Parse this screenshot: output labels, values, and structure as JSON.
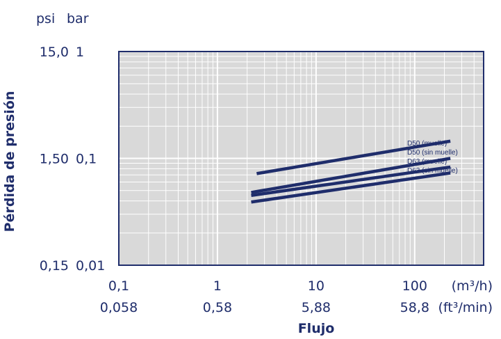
{
  "colors": {
    "background": "#ffffff",
    "plot_background": "#d9d9d9",
    "grid": "#ffffff",
    "frame": "#1f2d6b",
    "line": "#1f2d6b",
    "text": "#1f2d6b"
  },
  "chart_data": {
    "type": "line",
    "title": "",
    "xlabel": "Flujo",
    "ylabel": "Pérdida de presión",
    "x_scale": "log",
    "y_scale": "log",
    "xlim": [
      0.1,
      500
    ],
    "ylim": [
      0.01,
      1
    ],
    "grid": true,
    "legend": "inline labels at line ends",
    "x_units": [
      "(m³/h)",
      "(ft³/min)"
    ],
    "y_units": [
      "psi",
      "bar"
    ],
    "x_ticks": [
      {
        "value": 0.1,
        "label": "0,1",
        "alt_label": "0,058"
      },
      {
        "value": 1,
        "label": "1",
        "alt_label": "0,58"
      },
      {
        "value": 10,
        "label": "10",
        "alt_label": "5,88"
      },
      {
        "value": 100,
        "label": "100",
        "alt_label": "58,8"
      }
    ],
    "y_ticks": [
      {
        "value": 1,
        "label": "1",
        "alt_label": "15,0"
      },
      {
        "value": 0.1,
        "label": "0,1",
        "alt_label": "1,50"
      },
      {
        "value": 0.01,
        "label": "0,01",
        "alt_label": "0,15"
      }
    ],
    "series": [
      {
        "name": "D50 (muelle)",
        "x": [
          2.5,
          230
        ],
        "y": [
          0.072,
          0.145
        ]
      },
      {
        "name": "D50 (sin muelle)",
        "x": [
          2.2,
          230
        ],
        "y": [
          0.048,
          0.1
        ]
      },
      {
        "name": "D63 (muelle)",
        "x": [
          2.2,
          230
        ],
        "y": [
          0.045,
          0.083
        ]
      },
      {
        "name": "D63 (sin muelle)",
        "x": [
          2.2,
          230
        ],
        "y": [
          0.039,
          0.073
        ]
      }
    ]
  }
}
